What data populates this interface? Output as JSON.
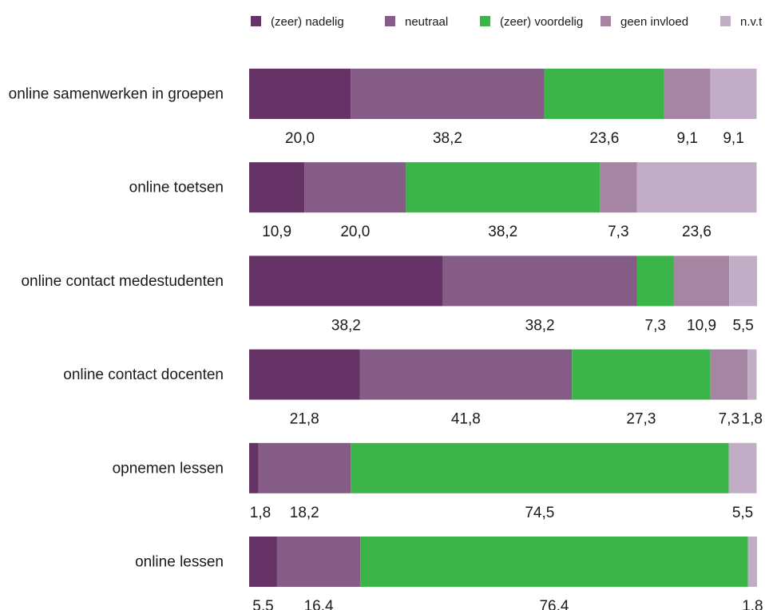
{
  "chart_data": {
    "type": "bar",
    "orientation": "horizontal",
    "stacked": true,
    "title": "",
    "xlabel": "",
    "ylabel": "",
    "xlim": [
      0,
      100
    ],
    "grid": false,
    "legend_position": "top",
    "categories": [
      "online samenwerken in groepen",
      "online toetsen",
      "online contact medestudenten",
      "online contact docenten",
      "opnemen lessen",
      "online lessen"
    ],
    "series": [
      {
        "name": "(zeer) nadelig",
        "color": "#663366",
        "values": [
          20.0,
          10.9,
          38.2,
          21.8,
          1.8,
          5.5
        ]
      },
      {
        "name": "neutraal",
        "color": "#845c86",
        "values": [
          38.2,
          20.0,
          38.2,
          41.8,
          18.2,
          16.4
        ]
      },
      {
        "name": "(zeer) voordelig",
        "color": "#3bb44a",
        "values": [
          23.6,
          38.2,
          7.3,
          27.3,
          74.5,
          76.4
        ]
      },
      {
        "name": "geen invloed",
        "color": "#a585a2",
        "values": [
          9.1,
          7.3,
          10.9,
          7.3,
          0,
          0
        ]
      },
      {
        "name": "n.v.t",
        "color": "#c1aec6",
        "values": [
          9.1,
          23.6,
          5.5,
          1.8,
          5.5,
          1.8
        ]
      }
    ],
    "data_labels": [
      [
        "20,0",
        "38,2",
        "23,6",
        "9,1",
        "9,1"
      ],
      [
        "10,9",
        "20,0",
        "38,2",
        "7,3",
        "23,6"
      ],
      [
        "38,2",
        "38,2",
        "7,3",
        "10,9",
        "5,5"
      ],
      [
        "21,8",
        "41,8",
        "27,3",
        "7,3",
        "1,8"
      ],
      [
        "1,8",
        "18,2",
        "74,5",
        "",
        "5,5"
      ],
      [
        "5,5",
        "16,4",
        "76,4",
        "",
        "1,8"
      ]
    ]
  }
}
